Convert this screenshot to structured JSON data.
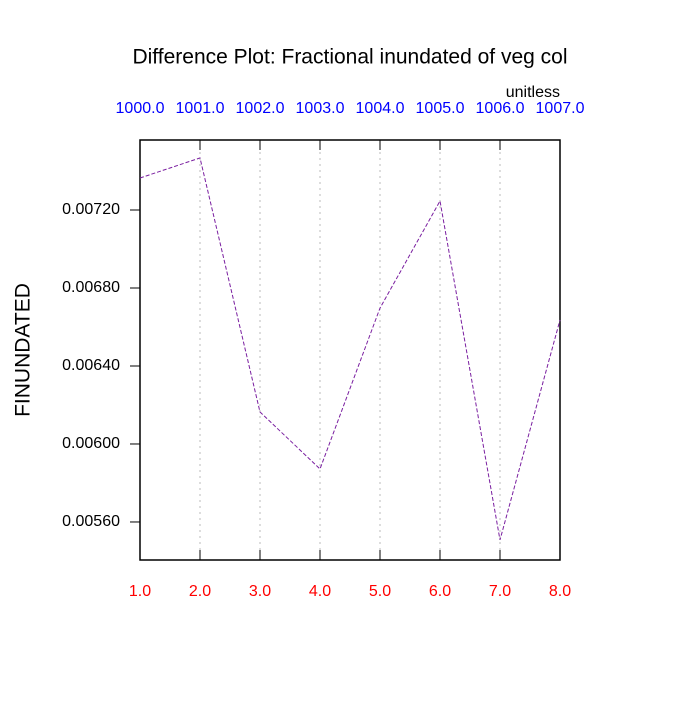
{
  "chart_data": {
    "type": "line",
    "title": "Difference Plot: Fractional inundated of veg col",
    "units": "unitless",
    "ylabel": "FINUNDATED",
    "x": [
      1,
      2,
      3,
      4,
      5,
      6,
      7,
      8
    ],
    "series": [
      {
        "color": "#7a1fa0",
        "values": [
          0.007364,
          0.007467,
          0.006164,
          0.005872,
          0.006697,
          0.007246,
          0.005508,
          0.006636
        ]
      }
    ],
    "xlim": [
      1,
      8
    ],
    "xticks": [
      {
        "value": 1,
        "label": "1.0"
      },
      {
        "value": 2,
        "label": "2.0"
      },
      {
        "value": 3,
        "label": "3.0"
      },
      {
        "value": 4,
        "label": "4.0"
      },
      {
        "value": 5,
        "label": "5.0"
      },
      {
        "value": 6,
        "label": "6.0"
      },
      {
        "value": 7,
        "label": "7.0"
      },
      {
        "value": 8,
        "label": "8.0"
      }
    ],
    "x2lim": [
      1000,
      1007
    ],
    "x2ticks": [
      {
        "value": 1000,
        "label": "1000.0"
      },
      {
        "value": 1001,
        "label": "1001.0"
      },
      {
        "value": 1002,
        "label": "1002.0"
      },
      {
        "value": 1003,
        "label": "1003.0"
      },
      {
        "value": 1004,
        "label": "1004.0"
      },
      {
        "value": 1005,
        "label": "1005.0"
      },
      {
        "value": 1006,
        "label": "1006.0"
      },
      {
        "value": 1007,
        "label": "1007.0"
      }
    ],
    "ylim": [
      0.005405,
      0.007559
    ],
    "yticks": [
      {
        "value": 0.0056,
        "label": "0.00560"
      },
      {
        "value": 0.006,
        "label": "0.00600"
      },
      {
        "value": 0.0064,
        "label": "0.00640"
      },
      {
        "value": 0.0068,
        "label": "0.00680"
      },
      {
        "value": 0.0072,
        "label": "0.00720"
      }
    ],
    "xtick_color": "#ff0000",
    "x2tick_color": "#0000ff",
    "grid": true
  }
}
